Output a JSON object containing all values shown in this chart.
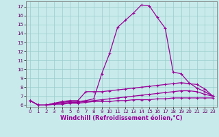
{
  "xlabel": "Windchill (Refroidissement éolien,°C)",
  "x": [
    0,
    1,
    2,
    3,
    4,
    5,
    6,
    7,
    8,
    9,
    10,
    11,
    12,
    13,
    14,
    15,
    16,
    17,
    18,
    19,
    20,
    21,
    22,
    23
  ],
  "line1": [
    6.5,
    6.0,
    6.0,
    6.2,
    6.3,
    6.4,
    6.4,
    6.5,
    6.7,
    9.5,
    11.8,
    14.7,
    15.5,
    16.3,
    17.2,
    17.1,
    15.8,
    14.6,
    9.7,
    9.5,
    8.5,
    7.9,
    7.5,
    7.0
  ],
  "line2": [
    6.5,
    6.0,
    6.0,
    6.2,
    6.4,
    6.5,
    6.5,
    7.5,
    7.5,
    7.5,
    7.6,
    7.7,
    7.8,
    7.9,
    8.0,
    8.1,
    8.2,
    8.3,
    8.4,
    8.5,
    8.4,
    8.3,
    7.8,
    7.0
  ],
  "line3": [
    6.5,
    6.0,
    6.0,
    6.1,
    6.2,
    6.3,
    6.3,
    6.4,
    6.5,
    6.6,
    6.7,
    6.8,
    6.9,
    7.0,
    7.1,
    7.2,
    7.3,
    7.4,
    7.5,
    7.6,
    7.6,
    7.5,
    7.2,
    7.0
  ],
  "line4": [
    6.5,
    6.0,
    6.0,
    6.1,
    6.1,
    6.2,
    6.2,
    6.3,
    6.4,
    6.4,
    6.4,
    6.5,
    6.5,
    6.6,
    6.6,
    6.6,
    6.7,
    6.7,
    6.8,
    6.8,
    6.8,
    6.8,
    6.8,
    6.8
  ],
  "line_color": "#990099",
  "bg_color": "#c8eaea",
  "grid_color": "#99cccc",
  "ylim": [
    5.8,
    17.6
  ],
  "xlim": [
    -0.5,
    23.5
  ],
  "yticks": [
    6,
    7,
    8,
    9,
    10,
    11,
    12,
    13,
    14,
    15,
    16,
    17
  ],
  "xticks": [
    0,
    1,
    2,
    3,
    4,
    5,
    6,
    7,
    8,
    9,
    10,
    11,
    12,
    13,
    14,
    15,
    16,
    17,
    18,
    19,
    20,
    21,
    22,
    23
  ],
  "marker": "+",
  "markersize": 3,
  "linewidth": 0.9,
  "tick_fontsize": 5,
  "xlabel_fontsize": 6
}
